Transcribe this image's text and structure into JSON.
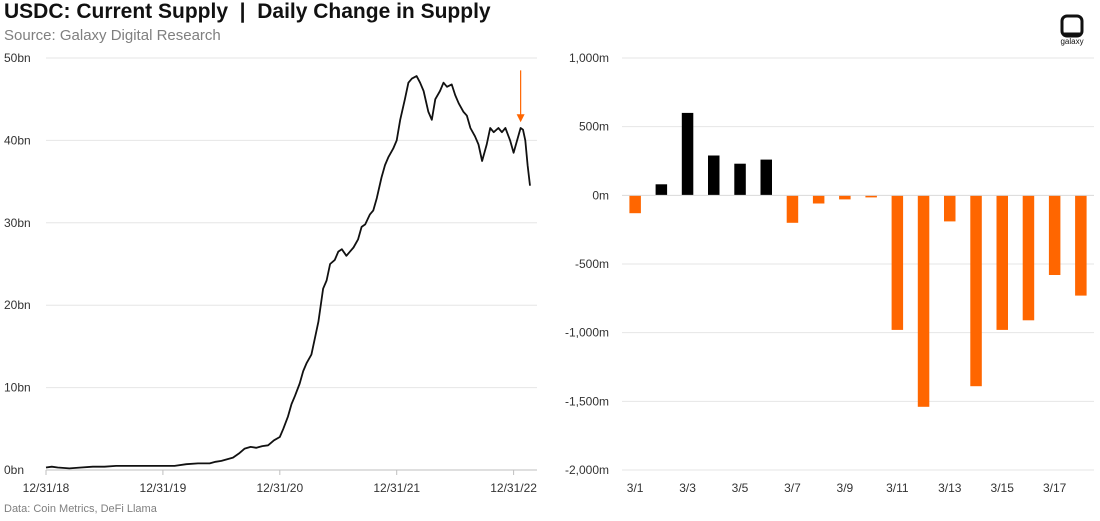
{
  "header": {
    "title": "USDC: Current Supply  |  Daily Change in Supply",
    "subtitle": "Source: Galaxy Digital Research"
  },
  "footer": {
    "note": "Data: Coin Metrics, DeFi Llama"
  },
  "logo": {
    "text": "galaxy"
  },
  "colors": {
    "line": "#111111",
    "positive": "#000000",
    "negative": "#ff6600",
    "arrow": "#ff6600",
    "grid": "#e6e6e6"
  },
  "chart_data": [
    {
      "type": "line",
      "title": "USDC: Current Supply",
      "xlabel": "",
      "ylabel": "",
      "x_ticks": [
        {
          "label": "12/31/18",
          "t": 0
        },
        {
          "label": "12/31/19",
          "t": 1
        },
        {
          "label": "12/31/20",
          "t": 2
        },
        {
          "label": "12/31/21",
          "t": 3
        },
        {
          "label": "12/31/22",
          "t": 4
        }
      ],
      "xlim": [
        0,
        4.2
      ],
      "y_ticks": [
        {
          "label": "0bn",
          "v": 0
        },
        {
          "label": "10bn",
          "v": 10
        },
        {
          "label": "20bn",
          "v": 20
        },
        {
          "label": "30bn",
          "v": 30
        },
        {
          "label": "40bn",
          "v": 40
        },
        {
          "label": "50bn",
          "v": 50
        }
      ],
      "ylim": [
        0,
        50
      ],
      "unit": "bn",
      "series": [
        {
          "name": "USDC Supply",
          "points": [
            [
              0.0,
              0.3
            ],
            [
              0.05,
              0.4
            ],
            [
              0.1,
              0.3
            ],
            [
              0.2,
              0.2
            ],
            [
              0.3,
              0.3
            ],
            [
              0.4,
              0.4
            ],
            [
              0.5,
              0.4
            ],
            [
              0.6,
              0.5
            ],
            [
              0.7,
              0.5
            ],
            [
              0.8,
              0.5
            ],
            [
              0.9,
              0.5
            ],
            [
              1.0,
              0.5
            ],
            [
              1.1,
              0.5
            ],
            [
              1.2,
              0.7
            ],
            [
              1.3,
              0.8
            ],
            [
              1.4,
              0.8
            ],
            [
              1.45,
              1.0
            ],
            [
              1.5,
              1.1
            ],
            [
              1.55,
              1.3
            ],
            [
              1.6,
              1.5
            ],
            [
              1.65,
              2.0
            ],
            [
              1.7,
              2.6
            ],
            [
              1.75,
              2.8
            ],
            [
              1.8,
              2.7
            ],
            [
              1.85,
              2.9
            ],
            [
              1.9,
              3.0
            ],
            [
              1.95,
              3.6
            ],
            [
              2.0,
              4.0
            ],
            [
              2.03,
              5.0
            ],
            [
              2.07,
              6.5
            ],
            [
              2.1,
              8.0
            ],
            [
              2.13,
              9.0
            ],
            [
              2.17,
              10.5
            ],
            [
              2.2,
              12.0
            ],
            [
              2.23,
              13.0
            ],
            [
              2.27,
              14.0
            ],
            [
              2.3,
              16.0
            ],
            [
              2.33,
              18.0
            ],
            [
              2.37,
              22.0
            ],
            [
              2.4,
              23.0
            ],
            [
              2.43,
              25.0
            ],
            [
              2.47,
              25.5
            ],
            [
              2.5,
              26.5
            ],
            [
              2.53,
              26.8
            ],
            [
              2.57,
              26.0
            ],
            [
              2.6,
              26.5
            ],
            [
              2.63,
              27.0
            ],
            [
              2.67,
              28.0
            ],
            [
              2.7,
              29.5
            ],
            [
              2.73,
              29.8
            ],
            [
              2.77,
              31.0
            ],
            [
              2.8,
              31.5
            ],
            [
              2.83,
              33.0
            ],
            [
              2.87,
              35.5
            ],
            [
              2.9,
              37.0
            ],
            [
              2.93,
              38.0
            ],
            [
              2.97,
              39.0
            ],
            [
              3.0,
              40.0
            ],
            [
              3.03,
              42.5
            ],
            [
              3.07,
              45.0
            ],
            [
              3.1,
              47.0
            ],
            [
              3.13,
              47.5
            ],
            [
              3.17,
              47.8
            ],
            [
              3.2,
              47.0
            ],
            [
              3.23,
              46.0
            ],
            [
              3.27,
              43.5
            ],
            [
              3.3,
              42.5
            ],
            [
              3.33,
              45.0
            ],
            [
              3.37,
              46.0
            ],
            [
              3.4,
              47.0
            ],
            [
              3.43,
              46.5
            ],
            [
              3.47,
              46.8
            ],
            [
              3.5,
              45.5
            ],
            [
              3.53,
              44.5
            ],
            [
              3.57,
              43.5
            ],
            [
              3.6,
              43.0
            ],
            [
              3.63,
              41.5
            ],
            [
              3.67,
              40.5
            ],
            [
              3.7,
              39.5
            ],
            [
              3.73,
              37.5
            ],
            [
              3.77,
              39.5
            ],
            [
              3.8,
              41.5
            ],
            [
              3.83,
              41.0
            ],
            [
              3.87,
              41.5
            ],
            [
              3.9,
              41.0
            ],
            [
              3.93,
              41.5
            ],
            [
              3.97,
              40.0
            ],
            [
              4.0,
              38.5
            ],
            [
              4.03,
              40.0
            ],
            [
              4.06,
              41.5
            ],
            [
              4.08,
              41.3
            ],
            [
              4.1,
              40.0
            ],
            [
              4.12,
              37.0
            ],
            [
              4.14,
              34.5
            ]
          ]
        }
      ],
      "annotation": {
        "type": "arrow",
        "at_t": 4.06,
        "from_v": 48.5,
        "to_v": 42.2
      }
    },
    {
      "type": "bar",
      "title": "Daily Change in Supply",
      "xlabel": "",
      "ylabel": "",
      "categories": [
        "3/1",
        "3/2",
        "3/3",
        "3/4",
        "3/5",
        "3/6",
        "3/7",
        "3/8",
        "3/9",
        "3/10",
        "3/11",
        "3/12",
        "3/13",
        "3/14",
        "3/15",
        "3/16",
        "3/17",
        "3/18"
      ],
      "category_ticks": [
        "3/1",
        "3/3",
        "3/5",
        "3/7",
        "3/9",
        "3/11",
        "3/13",
        "3/15",
        "3/17"
      ],
      "values": [
        -130,
        80,
        600,
        290,
        230,
        260,
        -200,
        -60,
        -30,
        -15,
        -980,
        -1540,
        -190,
        -1390,
        -980,
        -910,
        -580,
        -730
      ],
      "y_ticks": [
        {
          "label": "1,000m",
          "v": 1000
        },
        {
          "label": "500m",
          "v": 500
        },
        {
          "label": "0m",
          "v": 0
        },
        {
          "label": "-500m",
          "v": -500
        },
        {
          "label": "-1,000m",
          "v": -1000
        },
        {
          "label": "-1,500m",
          "v": -1500
        },
        {
          "label": "-2,000m",
          "v": -2000
        }
      ],
      "ylim": [
        -2000,
        1000
      ],
      "unit": "m"
    }
  ]
}
